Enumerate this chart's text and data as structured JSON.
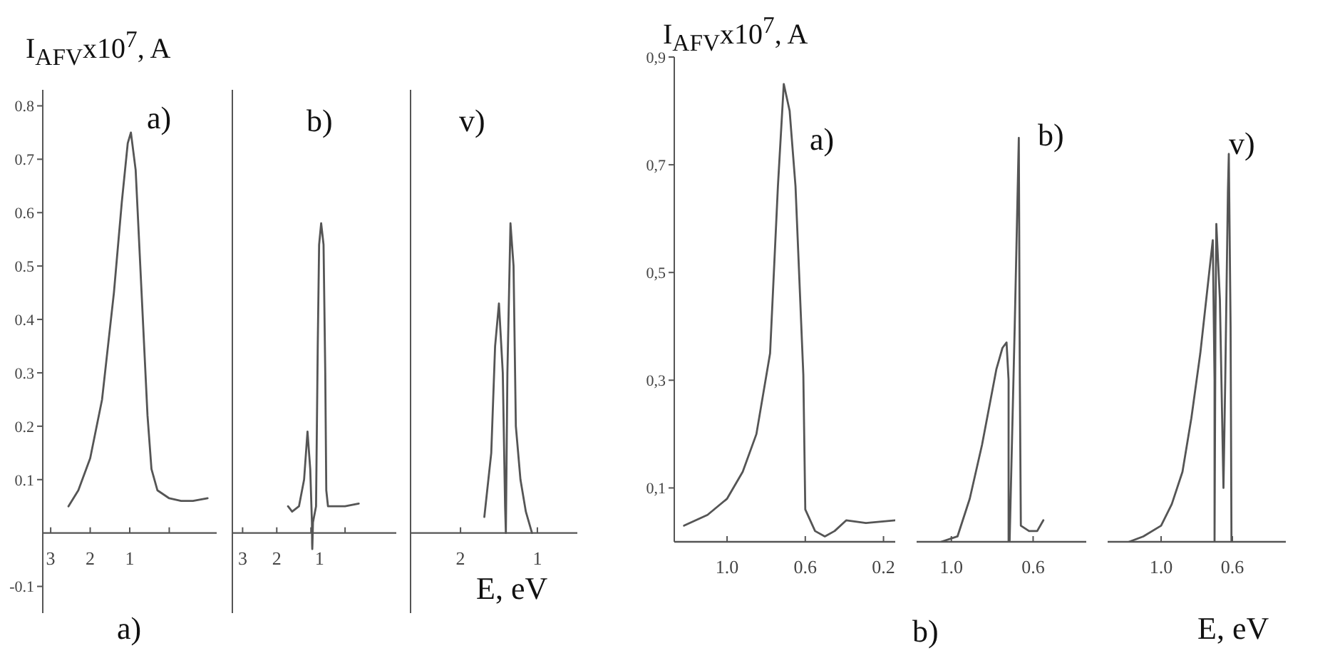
{
  "chart_data": [
    {
      "type": "line",
      "title": "a)",
      "ylabel": "I$_{AFV}$x10$^{7}$, A",
      "annotations": [
        "a)"
      ],
      "xlim": [
        3.2,
        -1.2
      ],
      "xticks": [
        3,
        2,
        1,
        {
          "value": 0,
          "label": null
        }
      ],
      "ylim": [
        -0.15,
        0.83
      ],
      "yticks": [
        0.8,
        0.7,
        0.6,
        0.5,
        0.4,
        0.3,
        0.2,
        0.1,
        -0.1
      ],
      "x": [
        2.55,
        2.3,
        2.0,
        1.7,
        1.4,
        1.2,
        1.05,
        0.97,
        0.85,
        0.7,
        0.55,
        0.45,
        0.3,
        0,
        -0.3,
        -0.6,
        -0.97
      ],
      "series": [
        {
          "color": "#555555",
          "values": [
            0.05,
            0.08,
            0.14,
            0.25,
            0.45,
            0.62,
            0.73,
            0.75,
            0.68,
            0.45,
            0.22,
            0.12,
            0.08,
            0.065,
            0.06,
            0.06,
            0.065
          ]
        }
      ]
    },
    {
      "type": "line",
      "title": "b)",
      "tick_labels": "x",
      "xlim": [
        3.3,
        -1.5
      ],
      "xticks": [
        3,
        2,
        1,
        {
          "value": 0,
          "label": null
        }
      ],
      "ylim": [
        -0.15,
        0.83
      ],
      "yticks": [
        0.8,
        0.7,
        0.6,
        0.5,
        0.4,
        0.3,
        0.2,
        0.1,
        -0.1
      ],
      "x": [
        1.67,
        1.55,
        1.35,
        1.2,
        1.1,
        1.02,
        0.97,
        0.965,
        0.96,
        0.955,
        0.94,
        0.85,
        0.8,
        0.76,
        0.7,
        0.63,
        0.58,
        0.55,
        0.5,
        0.3,
        0,
        -0.4
      ],
      "series": [
        {
          "color": "#555555",
          "values": [
            0.05,
            0.04,
            0.05,
            0.1,
            0.19,
            0.12,
            0.02,
            -0.02,
            -0.03,
            -0.02,
            0.02,
            0.05,
            0.35,
            0.54,
            0.58,
            0.54,
            0.3,
            0.08,
            0.05,
            0.05,
            0.05,
            0.055
          ]
        }
      ]
    },
    {
      "type": "line",
      "title": "v)",
      "xlabel": "E, eV",
      "tick_labels": "x",
      "xlim": [
        2.65,
        0.48
      ],
      "xticks": [
        2,
        1
      ],
      "ylim": [
        -0.15,
        0.83
      ],
      "yticks": [
        0.8,
        0.7,
        0.6,
        0.5,
        0.4,
        0.3,
        0.2,
        0.1,
        -0.1
      ],
      "x": [
        1.69,
        1.6,
        1.55,
        1.5,
        1.45,
        1.42,
        1.41,
        1.39,
        1.35,
        1.31,
        1.28,
        1.22,
        1.15,
        1.07
      ],
      "series": [
        {
          "color": "#555555",
          "values": [
            0.03,
            0.15,
            0.35,
            0.43,
            0.3,
            0.05,
            0.0,
            0.3,
            0.58,
            0.5,
            0.2,
            0.1,
            0.04,
            0.0
          ]
        }
      ]
    },
    {
      "type": "line",
      "title": "a)",
      "ylabel": "I$_{AFV}$x10$^{7}$, A",
      "xlim": [
        1.27,
        0.14
      ],
      "xticks": [
        {
          "value": 1,
          "label": "1.0"
        },
        {
          "value": 0.6,
          "label": "0.6"
        },
        {
          "value": 0.2,
          "label": "0.2"
        }
      ],
      "ylim": [
        0,
        0.9
      ],
      "yticks": [
        {
          "value": 0.9,
          "label": "0,9"
        },
        {
          "value": 0.7,
          "label": "0,7"
        },
        {
          "value": 0.5,
          "label": "0,5"
        },
        {
          "value": 0.3,
          "label": "0,3"
        },
        {
          "value": 0.1,
          "label": "0,1"
        }
      ],
      "x": [
        1.22,
        1.1,
        1.0,
        0.92,
        0.85,
        0.78,
        0.74,
        0.71,
        0.68,
        0.65,
        0.61,
        0.6,
        0.55,
        0.5,
        0.45,
        0.39,
        0.29,
        0.14
      ],
      "series": [
        {
          "color": "#555555",
          "values": [
            0.03,
            0.05,
            0.08,
            0.13,
            0.2,
            0.35,
            0.66,
            0.85,
            0.8,
            0.66,
            0.31,
            0.06,
            0.02,
            0.01,
            0.02,
            0.04,
            0.035,
            0.04
          ]
        }
      ]
    },
    {
      "type": "line",
      "title": "b)",
      "annotations": [
        "b)"
      ],
      "tick_labels": "x",
      "xlim": [
        1.17,
        0.34
      ],
      "xticks": [
        {
          "value": 1,
          "label": "1.0"
        },
        {
          "value": 0.6,
          "label": "0.6"
        }
      ],
      "ylim": [
        0,
        0.9
      ],
      "x": [
        1.05,
        0.97,
        0.91,
        0.85,
        0.82,
        0.78,
        0.75,
        0.73,
        0.72,
        0.72,
        0.715,
        0.69,
        0.67,
        0.665,
        0.66,
        0.62,
        0.58,
        0.55
      ],
      "series": [
        {
          "color": "#555555",
          "values": [
            0,
            0.01,
            0.08,
            0.18,
            0.24,
            0.32,
            0.36,
            0.37,
            0.3,
            0,
            0.0,
            0.4,
            0.75,
            0.3,
            0.03,
            0.02,
            0.02,
            0.04
          ]
        }
      ]
    },
    {
      "type": "line",
      "title": "v)",
      "xlabel": "E, eV",
      "tick_labels": "x",
      "xlim": [
        1.3,
        0.3
      ],
      "xticks": [
        {
          "value": 1,
          "label": "1.0"
        },
        {
          "value": 0.6,
          "label": "0.6"
        }
      ],
      "ylim": [
        0,
        0.9
      ],
      "x": [
        1.18,
        1.1,
        1.0,
        0.94,
        0.88,
        0.83,
        0.78,
        0.74,
        0.71,
        0.7,
        0.7,
        0.695,
        0.69,
        0.67,
        0.65,
        0.64,
        0.625,
        0.62,
        0.61,
        0.605
      ],
      "series": [
        {
          "color": "#555555",
          "values": [
            0,
            0.01,
            0.03,
            0.07,
            0.13,
            0.23,
            0.35,
            0.47,
            0.56,
            0.3,
            0,
            0.4,
            0.59,
            0.45,
            0.1,
            0.3,
            0.65,
            0.72,
            0.4,
            0.0
          ]
        }
      ]
    }
  ]
}
